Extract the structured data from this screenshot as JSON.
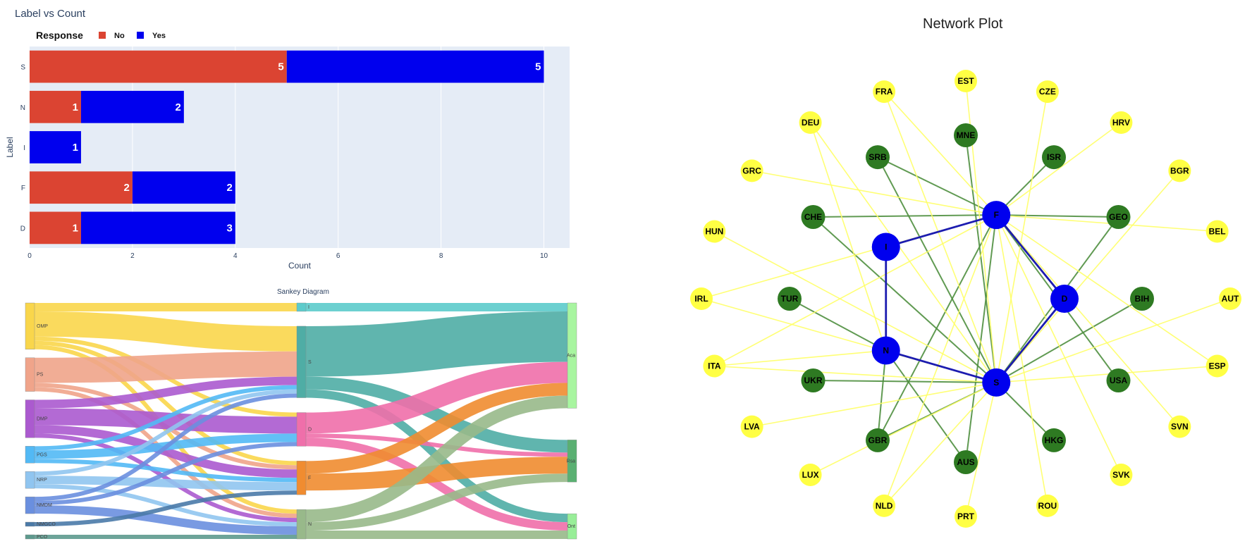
{
  "chart_data": [
    {
      "type": "bar",
      "orientation": "horizontal",
      "stacked": true,
      "title": "Label vs Count",
      "xlabel": "Count",
      "ylabel": "Label",
      "xlim": [
        0,
        10.5
      ],
      "xticks": [
        "0",
        "2",
        "4",
        "6",
        "8",
        "10"
      ],
      "categories": [
        "S",
        "N",
        "I",
        "F",
        "D"
      ],
      "legend_title": "Response",
      "legend_position": "top-left",
      "series": [
        {
          "name": "No",
          "color": "#db4432",
          "values": [
            5,
            1,
            0,
            2,
            1
          ]
        },
        {
          "name": "Yes",
          "color": "#0000ee",
          "values": [
            5,
            2,
            1,
            2,
            3
          ]
        }
      ]
    },
    {
      "type": "sankey",
      "title": "Sankey Diagram",
      "columns": [
        {
          "nodes": [
            {
              "id": "OMP",
              "label": "OMP",
              "color": "#f9d64b"
            },
            {
              "id": "PS",
              "label": "PS",
              "color": "#f0a48a"
            },
            {
              "id": "DMP",
              "label": "DMP",
              "color": "#ab5acf"
            },
            {
              "id": "PGS",
              "label": "PGS",
              "color": "#52b9f5"
            },
            {
              "id": "NRP",
              "label": "NRP",
              "color": "#90c5f0"
            },
            {
              "id": "NMDM",
              "label": "NMDM",
              "color": "#6a8fdf"
            },
            {
              "id": "NMGCO",
              "label": "NMGCO",
              "color": "#4a7aa8"
            },
            {
              "id": "PCO",
              "label": "PCO",
              "color": "#5d9a8e"
            }
          ]
        },
        {
          "nodes": [
            {
              "id": "I",
              "label": "I",
              "color": "#5ccbcb"
            },
            {
              "id": "S",
              "label": "S",
              "color": "#4fada5"
            },
            {
              "id": "D",
              "label": "D",
              "color": "#ef6faa"
            },
            {
              "id": "F",
              "label": "F",
              "color": "#f08c30"
            },
            {
              "id": "N",
              "label": "N",
              "color": "#98b98a"
            }
          ]
        },
        {
          "nodes": [
            {
              "id": "Aca",
              "label": "Aca",
              "color": "#a8f5a0"
            },
            {
              "id": "Rsa",
              "label": "Rsa",
              "color": "#5ab072"
            },
            {
              "id": "Ont",
              "label": "Ont",
              "color": "#98ee98"
            }
          ]
        }
      ],
      "links": [
        {
          "source": "OMP",
          "target": "I",
          "value": 1
        },
        {
          "source": "OMP",
          "target": "S",
          "value": 3
        },
        {
          "source": "OMP",
          "target": "D",
          "value": 0.5
        },
        {
          "source": "OMP",
          "target": "F",
          "value": 0.5
        },
        {
          "source": "OMP",
          "target": "N",
          "value": 0.5
        },
        {
          "source": "PS",
          "target": "S",
          "value": 3
        },
        {
          "source": "PS",
          "target": "F",
          "value": 0.5
        },
        {
          "source": "PS",
          "target": "N",
          "value": 0.5
        },
        {
          "source": "DMP",
          "target": "S",
          "value": 1
        },
        {
          "source": "DMP",
          "target": "D",
          "value": 2
        },
        {
          "source": "DMP",
          "target": "F",
          "value": 1
        },
        {
          "source": "DMP",
          "target": "N",
          "value": 0.5
        },
        {
          "source": "PGS",
          "target": "S",
          "value": 0.5
        },
        {
          "source": "PGS",
          "target": "D",
          "value": 1
        },
        {
          "source": "PGS",
          "target": "F",
          "value": 0.5
        },
        {
          "source": "NRP",
          "target": "S",
          "value": 0.5
        },
        {
          "source": "NRP",
          "target": "F",
          "value": 1
        },
        {
          "source": "NRP",
          "target": "N",
          "value": 0.5
        },
        {
          "source": "NMDM",
          "target": "S",
          "value": 0.5
        },
        {
          "source": "NMDM",
          "target": "D",
          "value": 0.5
        },
        {
          "source": "NMDM",
          "target": "N",
          "value": 1
        },
        {
          "source": "NMGCO",
          "target": "F",
          "value": 0.5
        },
        {
          "source": "PCO",
          "target": "N",
          "value": 0.5
        },
        {
          "source": "I",
          "target": "Aca",
          "value": 1
        },
        {
          "source": "S",
          "target": "Aca",
          "value": 6
        },
        {
          "source": "S",
          "target": "Rsa",
          "value": 1.5
        },
        {
          "source": "S",
          "target": "Ont",
          "value": 1
        },
        {
          "source": "D",
          "target": "Aca",
          "value": 2.5
        },
        {
          "source": "D",
          "target": "Rsa",
          "value": 0.5
        },
        {
          "source": "D",
          "target": "Ont",
          "value": 1
        },
        {
          "source": "F",
          "target": "Aca",
          "value": 1.5
        },
        {
          "source": "F",
          "target": "Rsa",
          "value": 2
        },
        {
          "source": "N",
          "target": "Aca",
          "value": 1.5
        },
        {
          "source": "N",
          "target": "Rsa",
          "value": 1
        },
        {
          "source": "N",
          "target": "Ont",
          "value": 1
        }
      ]
    },
    {
      "type": "network",
      "title": "Network Plot",
      "layout": "concentric",
      "colors": {
        "core": "#0000ee",
        "middle": "#2e7a22",
        "outer": "#ffff44",
        "edge_core": "#1c1cb0",
        "edge_middle": "#4f8f3f",
        "edge_outer": "#ffff66"
      },
      "core_nodes": [
        "S",
        "N",
        "I",
        "F",
        "D"
      ],
      "middle_nodes": [
        "MNE",
        "ISR",
        "GEO",
        "BIH",
        "USA",
        "HKG",
        "AUS",
        "GBR",
        "UKR",
        "TUR",
        "CHE",
        "SRB"
      ],
      "outer_nodes": [
        "EST",
        "CZE",
        "HRV",
        "BGR",
        "BEL",
        "AUT",
        "ESP",
        "SVN",
        "SVK",
        "ROU",
        "PRT",
        "NLD",
        "LUX",
        "LVA",
        "ITA",
        "IRL",
        "HUN",
        "GRC",
        "DEU",
        "FRA"
      ],
      "core_edges": [
        [
          "I",
          "F"
        ],
        [
          "I",
          "N"
        ],
        [
          "F",
          "D"
        ],
        [
          "N",
          "S"
        ],
        [
          "D",
          "S"
        ]
      ],
      "edges": [
        [
          "CHE",
          "F"
        ],
        [
          "CHE",
          "S"
        ],
        [
          "SRB",
          "F"
        ],
        [
          "SRB",
          "S"
        ],
        [
          "MNE",
          "S"
        ],
        [
          "ISR",
          "F"
        ],
        [
          "GEO",
          "F"
        ],
        [
          "GEO",
          "S"
        ],
        [
          "BIH",
          "S"
        ],
        [
          "USA",
          "F"
        ],
        [
          "HKG",
          "S"
        ],
        [
          "AUS",
          "F"
        ],
        [
          "AUS",
          "N"
        ],
        [
          "GBR",
          "F"
        ],
        [
          "GBR",
          "S"
        ],
        [
          "GBR",
          "N"
        ],
        [
          "UKR",
          "S"
        ],
        [
          "TUR",
          "N"
        ],
        [
          "FRA",
          "F"
        ],
        [
          "FRA",
          "S"
        ],
        [
          "EST",
          "S"
        ],
        [
          "CZE",
          "S"
        ],
        [
          "HRV",
          "F"
        ],
        [
          "BGR",
          "S"
        ],
        [
          "BEL",
          "F"
        ],
        [
          "AUT",
          "S"
        ],
        [
          "ESP",
          "F"
        ],
        [
          "ESP",
          "S"
        ],
        [
          "SVN",
          "F"
        ],
        [
          "SVK",
          "F"
        ],
        [
          "ROU",
          "F"
        ],
        [
          "PRT",
          "S"
        ],
        [
          "NLD",
          "F"
        ],
        [
          "NLD",
          "S"
        ],
        [
          "LUX",
          "S"
        ],
        [
          "LVA",
          "S"
        ],
        [
          "ITA",
          "F"
        ],
        [
          "ITA",
          "S"
        ],
        [
          "ITA",
          "N"
        ],
        [
          "IRL",
          "F"
        ],
        [
          "IRL",
          "S"
        ],
        [
          "HUN",
          "S"
        ],
        [
          "GRC",
          "F"
        ],
        [
          "DEU",
          "S"
        ],
        [
          "DEU",
          "N"
        ]
      ]
    }
  ]
}
